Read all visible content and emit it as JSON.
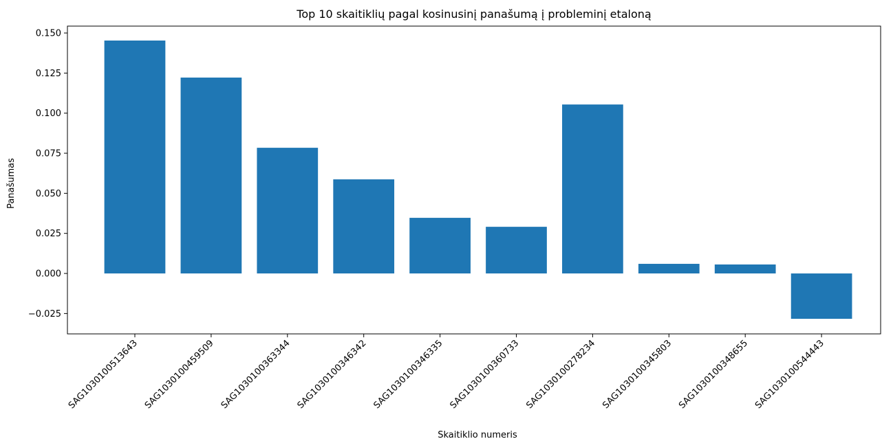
{
  "chart_data": {
    "type": "bar",
    "title": "Top 10 skaitiklių pagal kosinusinį panašumą į probleminį etaloną",
    "x_label": "Skaitiklio numeris",
    "y_label": "Panašumas",
    "categories": [
      "SAG103010051364З",
      "SAG1030100459509",
      "SAG1030100363344",
      "SAG1030100346342",
      "SAG1030100346335",
      "SAG1030100360733",
      "SAG1030100278234",
      "SAG1030100345803",
      "SAG1030100348655",
      "SAG1030100544443"
    ],
    "values": [
      0.1453,
      0.1222,
      0.0784,
      0.0587,
      0.0347,
      0.0291,
      0.1054,
      0.006,
      0.0056,
      -0.0283
    ],
    "color": "#1f77b4",
    "ylim": [
      -0.0377,
      0.1543
    ],
    "yticks": [
      {
        "value": -0.025,
        "label": "−0.025"
      },
      {
        "value": 0,
        "label": "0.000"
      },
      {
        "value": 0.025,
        "label": "0.025"
      },
      {
        "value": 0.05,
        "label": "0.050"
      },
      {
        "value": 0.075,
        "label": "0.075"
      },
      {
        "value": 0.1,
        "label": "0.100"
      },
      {
        "value": 0.125,
        "label": "0.125"
      },
      {
        "value": 0.15,
        "label": "0.150"
      }
    ],
    "grid": false
  }
}
